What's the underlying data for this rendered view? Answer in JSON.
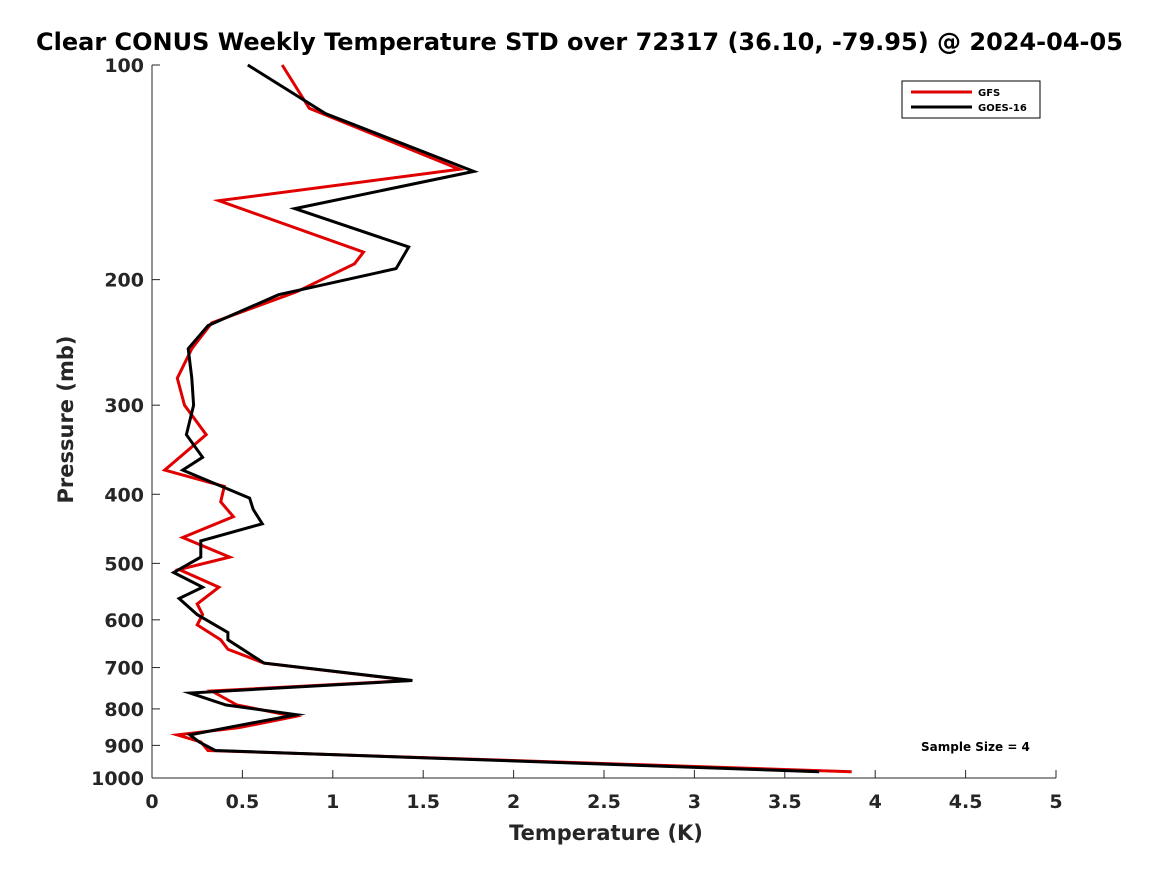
{
  "chart_data": {
    "type": "line",
    "title": "Clear CONUS Weekly Temperature STD over 72317 (36.10, -79.95) @ 2024-04-05",
    "xlabel": "Temperature (K)",
    "ylabel": "Pressure (mb)",
    "xlim": [
      0,
      5
    ],
    "ylim": [
      1000,
      100
    ],
    "yscale": "log",
    "xticks": [
      "0",
      "0.5",
      "1",
      "1.5",
      "2",
      "2.5",
      "3",
      "3.5",
      "4",
      "4.5",
      "5"
    ],
    "yticks": [
      "100",
      "200",
      "300",
      "400",
      "500",
      "600",
      "700",
      "800",
      "900",
      "1000"
    ],
    "grid": false,
    "legend_position": "top-right",
    "annotation": "Sample Size = 4",
    "series": [
      {
        "name": "GFS",
        "color": "#e00000",
        "x": [
          0.72,
          0.87,
          1.7,
          0.37,
          1.17,
          1.12,
          0.8,
          0.33,
          0.22,
          0.14,
          0.18,
          0.3,
          0.07,
          0.4,
          0.38,
          0.45,
          0.17,
          0.43,
          0.15,
          0.37,
          0.25,
          0.28,
          0.25,
          0.38,
          0.42,
          0.62,
          1.43,
          0.33,
          0.47,
          0.79,
          0.48,
          0.14,
          0.27,
          0.31,
          3.87
        ],
        "y": [
          100,
          115,
          140,
          155,
          183,
          190,
          208,
          230,
          250,
          275,
          300,
          330,
          370,
          390,
          410,
          430,
          460,
          490,
          510,
          540,
          570,
          590,
          610,
          640,
          660,
          690,
          730,
          755,
          790,
          820,
          850,
          870,
          890,
          915,
          980
        ]
      },
      {
        "name": "GOES-16",
        "color": "#000000",
        "x": [
          0.53,
          0.96,
          1.78,
          0.79,
          1.42,
          1.35,
          0.7,
          0.31,
          0.2,
          0.22,
          0.23,
          0.19,
          0.28,
          0.17,
          0.54,
          0.56,
          0.61,
          0.27,
          0.27,
          0.12,
          0.28,
          0.15,
          0.25,
          0.42,
          0.42,
          0.62,
          1.44,
          0.21,
          0.41,
          0.8,
          0.47,
          0.21,
          0.26,
          0.35,
          3.69
        ],
        "y": [
          100,
          117,
          141,
          159,
          180,
          193,
          210,
          232,
          250,
          275,
          300,
          330,
          355,
          370,
          405,
          420,
          440,
          465,
          490,
          515,
          540,
          560,
          590,
          625,
          640,
          690,
          730,
          760,
          790,
          815,
          845,
          870,
          890,
          915,
          980
        ]
      }
    ]
  }
}
